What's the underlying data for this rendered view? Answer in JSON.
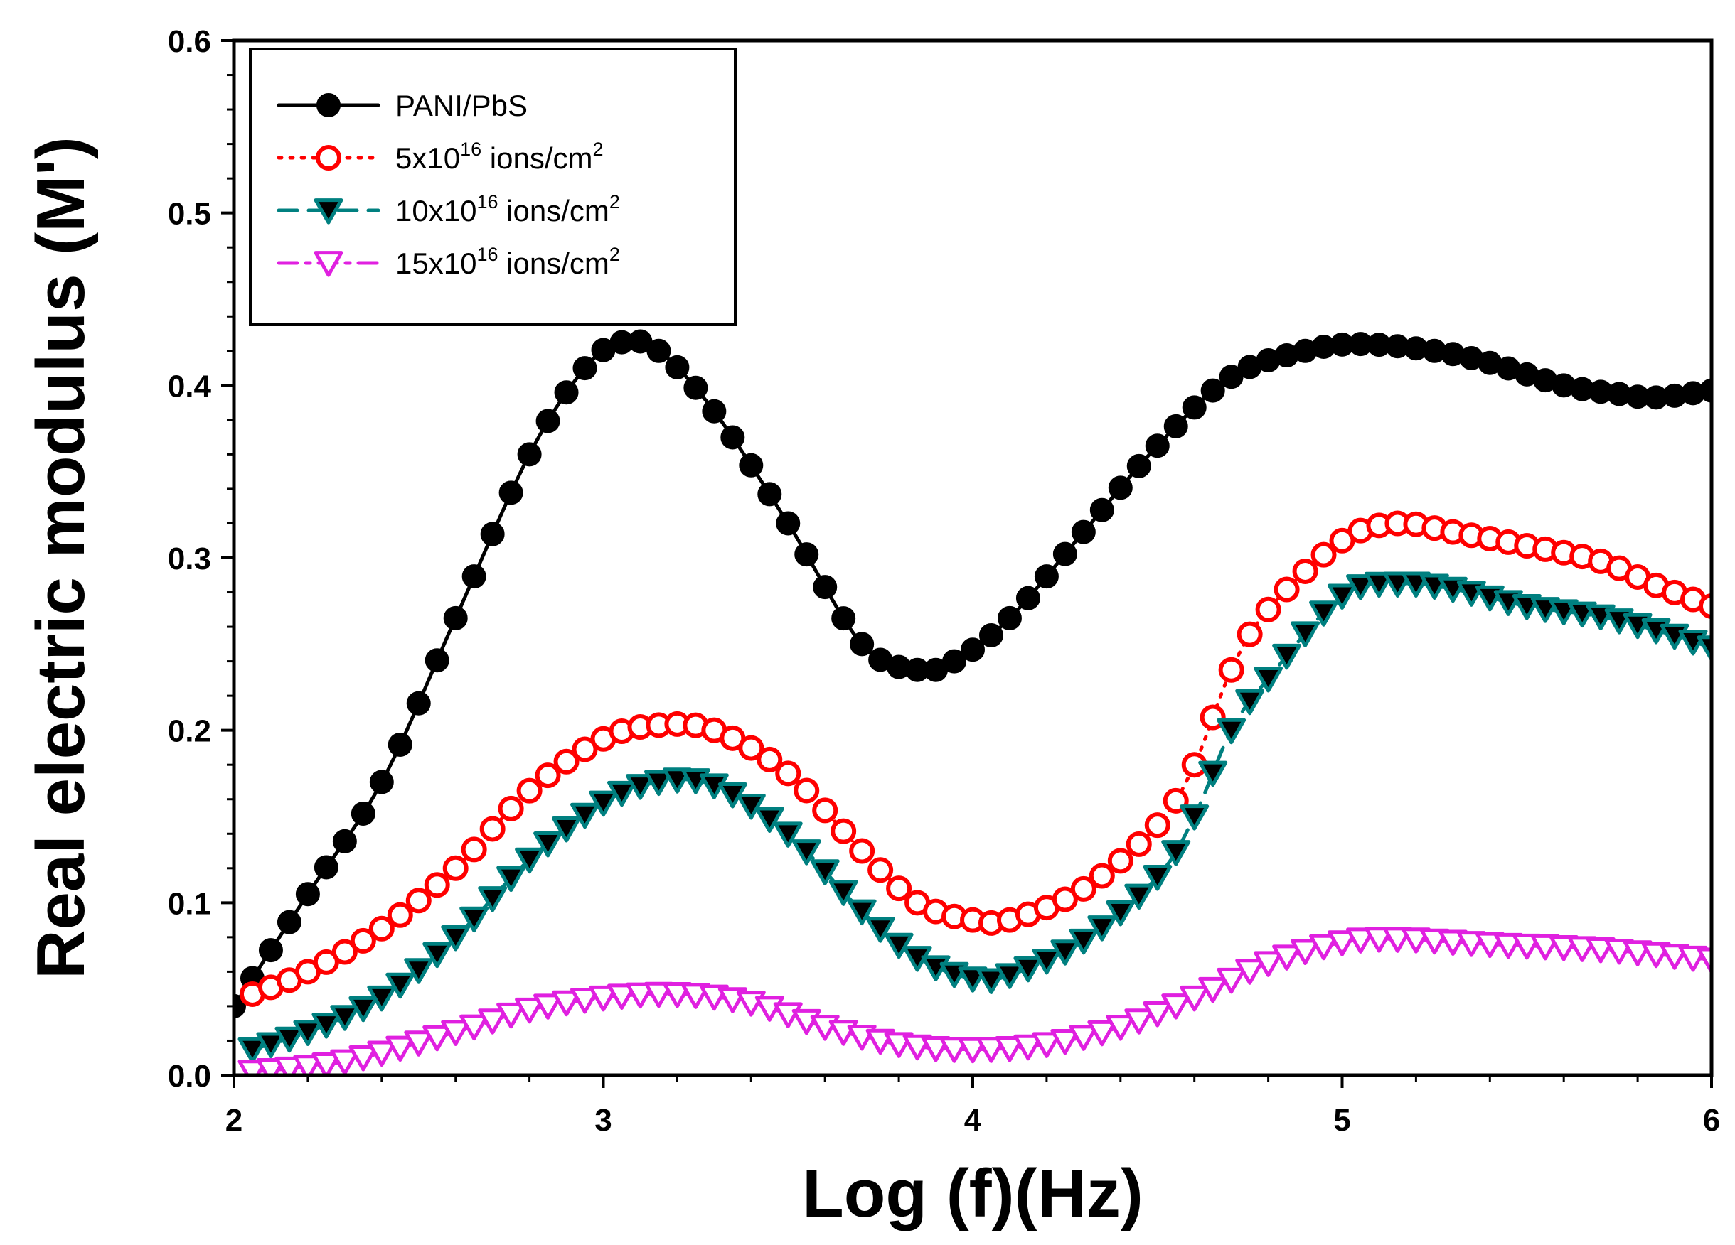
{
  "chart_data": {
    "type": "line",
    "title": "",
    "xlabel": "Log (f)(Hz)",
    "ylabel": "Real electric modulus (M')",
    "xlim": [
      2,
      6
    ],
    "ylim": [
      0.0,
      0.6
    ],
    "x_ticks": [
      2,
      3,
      4,
      5,
      6
    ],
    "y_ticks": [
      0.0,
      0.1,
      0.2,
      0.3,
      0.4,
      0.5,
      0.6
    ],
    "x_tick_labels": [
      "2",
      "3",
      "4",
      "5",
      "6"
    ],
    "y_tick_labels": [
      "0.0",
      "0.1",
      "0.2",
      "0.3",
      "0.4",
      "0.5",
      "0.6"
    ],
    "grid": false,
    "legend_position": "top-left",
    "series": [
      {
        "name": "PANI/PbS",
        "label_parts": [
          "PANI/PbS"
        ],
        "color": "#000000",
        "marker": "filled-circle",
        "line_style": "solid",
        "points": [
          [
            2.0,
            0.04
          ],
          [
            2.2,
            0.105
          ],
          [
            2.4,
            0.17
          ],
          [
            2.6,
            0.265
          ],
          [
            2.8,
            0.36
          ],
          [
            2.95,
            0.41
          ],
          [
            3.05,
            0.425
          ],
          [
            3.15,
            0.42
          ],
          [
            3.3,
            0.385
          ],
          [
            3.5,
            0.32
          ],
          [
            3.7,
            0.25
          ],
          [
            3.85,
            0.235
          ],
          [
            3.95,
            0.24
          ],
          [
            4.1,
            0.265
          ],
          [
            4.3,
            0.315
          ],
          [
            4.5,
            0.365
          ],
          [
            4.7,
            0.405
          ],
          [
            4.9,
            0.42
          ],
          [
            5.05,
            0.424
          ],
          [
            5.25,
            0.42
          ],
          [
            5.4,
            0.413
          ],
          [
            5.6,
            0.4
          ],
          [
            5.75,
            0.395
          ],
          [
            5.85,
            0.393
          ],
          [
            6.0,
            0.397
          ]
        ]
      },
      {
        "name": "5x10^16 ions/cm^2",
        "label_parts": [
          "5x10",
          "16",
          " ions/cm",
          "2"
        ],
        "color": "#ff0000",
        "marker": "open-circle",
        "line_style": "dotted",
        "points": [
          [
            2.05,
            0.047
          ],
          [
            2.2,
            0.06
          ],
          [
            2.4,
            0.085
          ],
          [
            2.6,
            0.12
          ],
          [
            2.8,
            0.165
          ],
          [
            3.0,
            0.195
          ],
          [
            3.15,
            0.203
          ],
          [
            3.3,
            0.2
          ],
          [
            3.5,
            0.175
          ],
          [
            3.7,
            0.13
          ],
          [
            3.85,
            0.1
          ],
          [
            4.0,
            0.09
          ],
          [
            4.1,
            0.09
          ],
          [
            4.3,
            0.108
          ],
          [
            4.5,
            0.145
          ],
          [
            4.6,
            0.18
          ],
          [
            4.7,
            0.235
          ],
          [
            4.8,
            0.27
          ],
          [
            5.0,
            0.31
          ],
          [
            5.15,
            0.32
          ],
          [
            5.3,
            0.315
          ],
          [
            5.5,
            0.307
          ],
          [
            5.7,
            0.298
          ],
          [
            5.85,
            0.284
          ],
          [
            6.0,
            0.272
          ]
        ]
      },
      {
        "name": "10x10^16 ions/cm^2",
        "label_parts": [
          "10x10",
          "16",
          " ions/cm",
          "2"
        ],
        "color": "#008080",
        "marker": "filled-triangle-down",
        "line_style": "dashed",
        "points": [
          [
            2.05,
            0.015
          ],
          [
            2.2,
            0.025
          ],
          [
            2.4,
            0.045
          ],
          [
            2.6,
            0.08
          ],
          [
            2.8,
            0.125
          ],
          [
            3.0,
            0.158
          ],
          [
            3.15,
            0.17
          ],
          [
            3.3,
            0.168
          ],
          [
            3.5,
            0.14
          ],
          [
            3.7,
            0.095
          ],
          [
            3.85,
            0.068
          ],
          [
            4.0,
            0.056
          ],
          [
            4.1,
            0.058
          ],
          [
            4.3,
            0.078
          ],
          [
            4.5,
            0.115
          ],
          [
            4.6,
            0.15
          ],
          [
            4.7,
            0.2
          ],
          [
            4.8,
            0.23
          ],
          [
            5.0,
            0.278
          ],
          [
            5.15,
            0.285
          ],
          [
            5.3,
            0.282
          ],
          [
            5.5,
            0.272
          ],
          [
            5.7,
            0.266
          ],
          [
            5.85,
            0.258
          ],
          [
            6.0,
            0.248
          ]
        ]
      },
      {
        "name": "15x10^16 ions/cm^2",
        "label_parts": [
          "15x10",
          "16",
          " ions/cm",
          "2"
        ],
        "color": "#e020e0",
        "marker": "open-triangle-down",
        "line_style": "dash-dot",
        "points": [
          [
            2.05,
            0.002
          ],
          [
            2.3,
            0.008
          ],
          [
            2.6,
            0.025
          ],
          [
            2.8,
            0.038
          ],
          [
            3.0,
            0.045
          ],
          [
            3.2,
            0.047
          ],
          [
            3.4,
            0.042
          ],
          [
            3.6,
            0.028
          ],
          [
            3.8,
            0.018
          ],
          [
            4.0,
            0.015
          ],
          [
            4.2,
            0.018
          ],
          [
            4.4,
            0.028
          ],
          [
            4.6,
            0.045
          ],
          [
            4.8,
            0.065
          ],
          [
            5.0,
            0.077
          ],
          [
            5.15,
            0.079
          ],
          [
            5.4,
            0.076
          ],
          [
            5.7,
            0.073
          ],
          [
            6.0,
            0.067
          ]
        ]
      }
    ]
  }
}
